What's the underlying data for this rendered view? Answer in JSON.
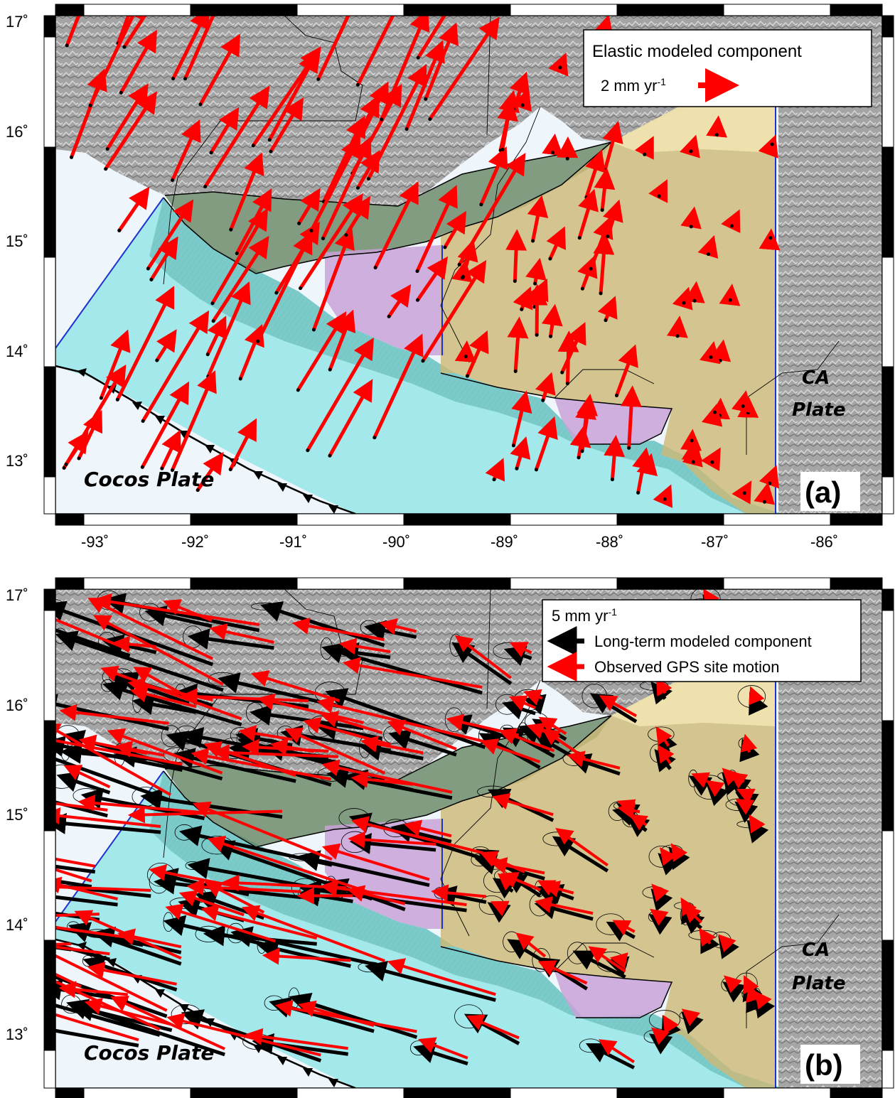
{
  "colors": {
    "ocean": "#eef5fb",
    "cocos_band": "#aef0f2",
    "forearc_green": "#6f8f6a",
    "forearc_teal": "#5fb3b3",
    "block_purple": "#c9a2d8",
    "block_tan": "#d8c58c",
    "land_gray": "#a9a9a9",
    "plate_boundary": "#1f33cc",
    "elastic_arrow": "#ff0000",
    "longterm_arrow": "#000000"
  },
  "panels": [
    {
      "id": "a",
      "label": "(a)",
      "legend": {
        "title": "Elastic modeled component",
        "scale_text": "2 mm yr",
        "scale_sup": "-1",
        "arrow_color": "#ff0000"
      },
      "plate_labels": {
        "cocos": "Cocos Plate",
        "ca_line1": "CA",
        "ca_line2": "Plate"
      },
      "y_ticks": [
        "17˚",
        "16˚",
        "15˚",
        "14˚",
        "13˚"
      ],
      "x_ticks": [
        "-93˚",
        "-92˚",
        "-91˚",
        "-90˚",
        "-89˚",
        "-88˚",
        "-87˚",
        "-86˚"
      ]
    },
    {
      "id": "b",
      "label": "(b)",
      "legend": {
        "scale_text": "5 mm yr",
        "scale_sup": "-1",
        "items": [
          {
            "label": "Long-term modeled component",
            "color": "#000000"
          },
          {
            "label": "Observed GPS site motion",
            "color": "#ff0000"
          }
        ]
      },
      "plate_labels": {
        "cocos": "Cocos Plate",
        "ca_line1": "CA",
        "ca_line2": "Plate"
      },
      "y_ticks": [
        "17˚",
        "16˚",
        "15˚",
        "14˚",
        "13˚"
      ]
    }
  ]
}
